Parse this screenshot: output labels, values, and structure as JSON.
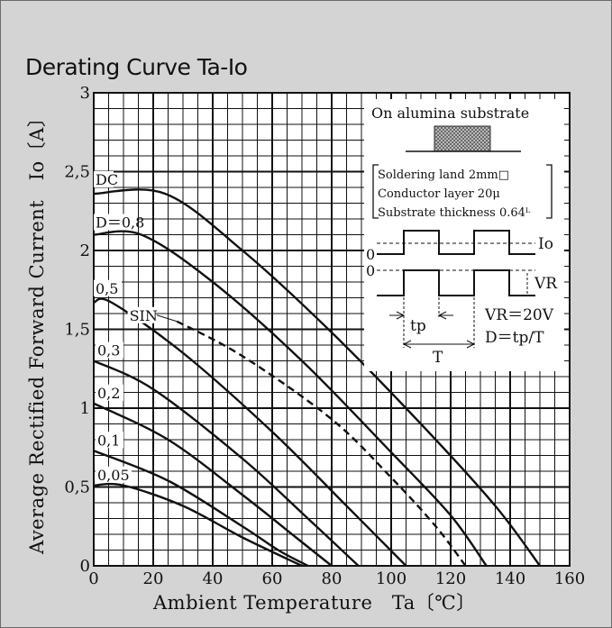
{
  "chart_data": {
    "type": "line",
    "title": "Derating Curve Ta-Io",
    "xlabel": "Ambient Temperature　Ta〔℃〕",
    "ylabel": "Average Rectified Forward Current　Io〔A〕",
    "xlim": [
      0,
      160
    ],
    "ylim": [
      0,
      3
    ],
    "x_ticks": [
      "0",
      "20",
      "40",
      "60",
      "80",
      "100",
      "120",
      "140",
      "160"
    ],
    "y_ticks": [
      "0",
      "0,5",
      "1",
      "1,5",
      "2",
      "2,5",
      "3"
    ],
    "grid": true,
    "series": [
      {
        "name": "DC",
        "dashed": false,
        "points": [
          [
            0,
            2.36
          ],
          [
            24,
            2.36
          ],
          [
            50,
            2.0
          ],
          [
            80,
            1.48
          ],
          [
            110,
            0.9
          ],
          [
            135,
            0.38
          ],
          [
            150,
            0
          ]
        ]
      },
      {
        "name": "D=0,8",
        "dashed": false,
        "points": [
          [
            0,
            2.1
          ],
          [
            16,
            2.1
          ],
          [
            40,
            1.8
          ],
          [
            70,
            1.3
          ],
          [
            100,
            0.72
          ],
          [
            120,
            0.32
          ],
          [
            132,
            0
          ]
        ]
      },
      {
        "name": "SIN",
        "dashed": true,
        "points": [
          [
            28,
            1.55
          ],
          [
            50,
            1.33
          ],
          [
            80,
            0.93
          ],
          [
            100,
            0.56
          ],
          [
            115,
            0.25
          ],
          [
            125,
            0
          ]
        ]
      },
      {
        "name": "0,5",
        "dashed": false,
        "points": [
          [
            0,
            1.67
          ],
          [
            6,
            1.67
          ],
          [
            30,
            1.35
          ],
          [
            60,
            0.85
          ],
          [
            85,
            0.38
          ],
          [
            105,
            0
          ]
        ]
      },
      {
        "name": "0,3",
        "dashed": false,
        "points": [
          [
            0,
            1.3
          ],
          [
            20,
            1.12
          ],
          [
            50,
            0.68
          ],
          [
            72,
            0.3
          ],
          [
            89,
            0
          ]
        ]
      },
      {
        "name": "0,2",
        "dashed": false,
        "points": [
          [
            0,
            1.03
          ],
          [
            25,
            0.8
          ],
          [
            50,
            0.45
          ],
          [
            68,
            0.18
          ],
          [
            80,
            0
          ]
        ]
      },
      {
        "name": "0,1",
        "dashed": false,
        "points": [
          [
            0,
            0.73
          ],
          [
            25,
            0.54
          ],
          [
            50,
            0.25
          ],
          [
            62,
            0.1
          ],
          [
            72,
            0
          ]
        ]
      },
      {
        "name": "0,05",
        "dashed": false,
        "points": [
          [
            0,
            0.51
          ],
          [
            10,
            0.51
          ],
          [
            30,
            0.38
          ],
          [
            50,
            0.18
          ],
          [
            70,
            0
          ]
        ]
      }
    ],
    "series_labels": [
      "DC",
      "D＝0,8",
      "SIN",
      "0,5",
      "0,3",
      "0,2",
      "0,1",
      "0,05"
    ],
    "inset": {
      "heading": "On alumina substrate",
      "notes": [
        "Soldering land 2mm□",
        "Conductor layer 20μ",
        "Substrate thickness 0.64ᴸ"
      ],
      "zero_top": "0",
      "zero_bottom": "0",
      "io_label": "Io",
      "vr_label": "VR",
      "tp_label": "tp",
      "t_label": "T",
      "vr_value": "VR＝20V",
      "duty": "D＝tp/T"
    }
  }
}
